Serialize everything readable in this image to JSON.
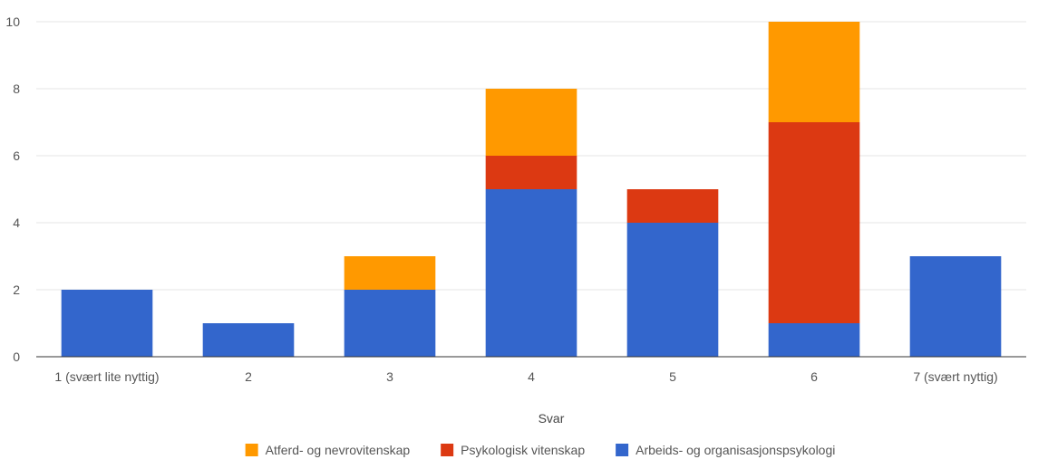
{
  "chart_data": {
    "type": "bar",
    "stacked": true,
    "categories": [
      "1  (svært lite nyttig)",
      "2",
      "3",
      "4",
      "5",
      "6",
      "7  (svært nyttig)"
    ],
    "series": [
      {
        "name": "Arbeids- og organisasjonspsykologi",
        "color": "#3366cc",
        "values": [
          2,
          1,
          2,
          5,
          4,
          1,
          3
        ]
      },
      {
        "name": "Psykologisk vitenskap",
        "color": "#dc3912",
        "values": [
          0,
          0,
          0,
          1,
          1,
          6,
          0
        ]
      },
      {
        "name": "Atferd- og nevrovitenskap",
        "color": "#ff9900",
        "values": [
          0,
          0,
          1,
          2,
          0,
          3,
          0
        ]
      }
    ],
    "legend_order": [
      "Atferd- og nevrovitenskap",
      "Psykologisk vitenskap",
      "Arbeids- og organisasjonspsykologi"
    ],
    "xlabel": "Svar",
    "ylabel": "",
    "ylim": [
      0,
      10
    ],
    "yticks": [
      0,
      2,
      4,
      6,
      8,
      10
    ],
    "grid": true,
    "legend_position": "bottom"
  }
}
